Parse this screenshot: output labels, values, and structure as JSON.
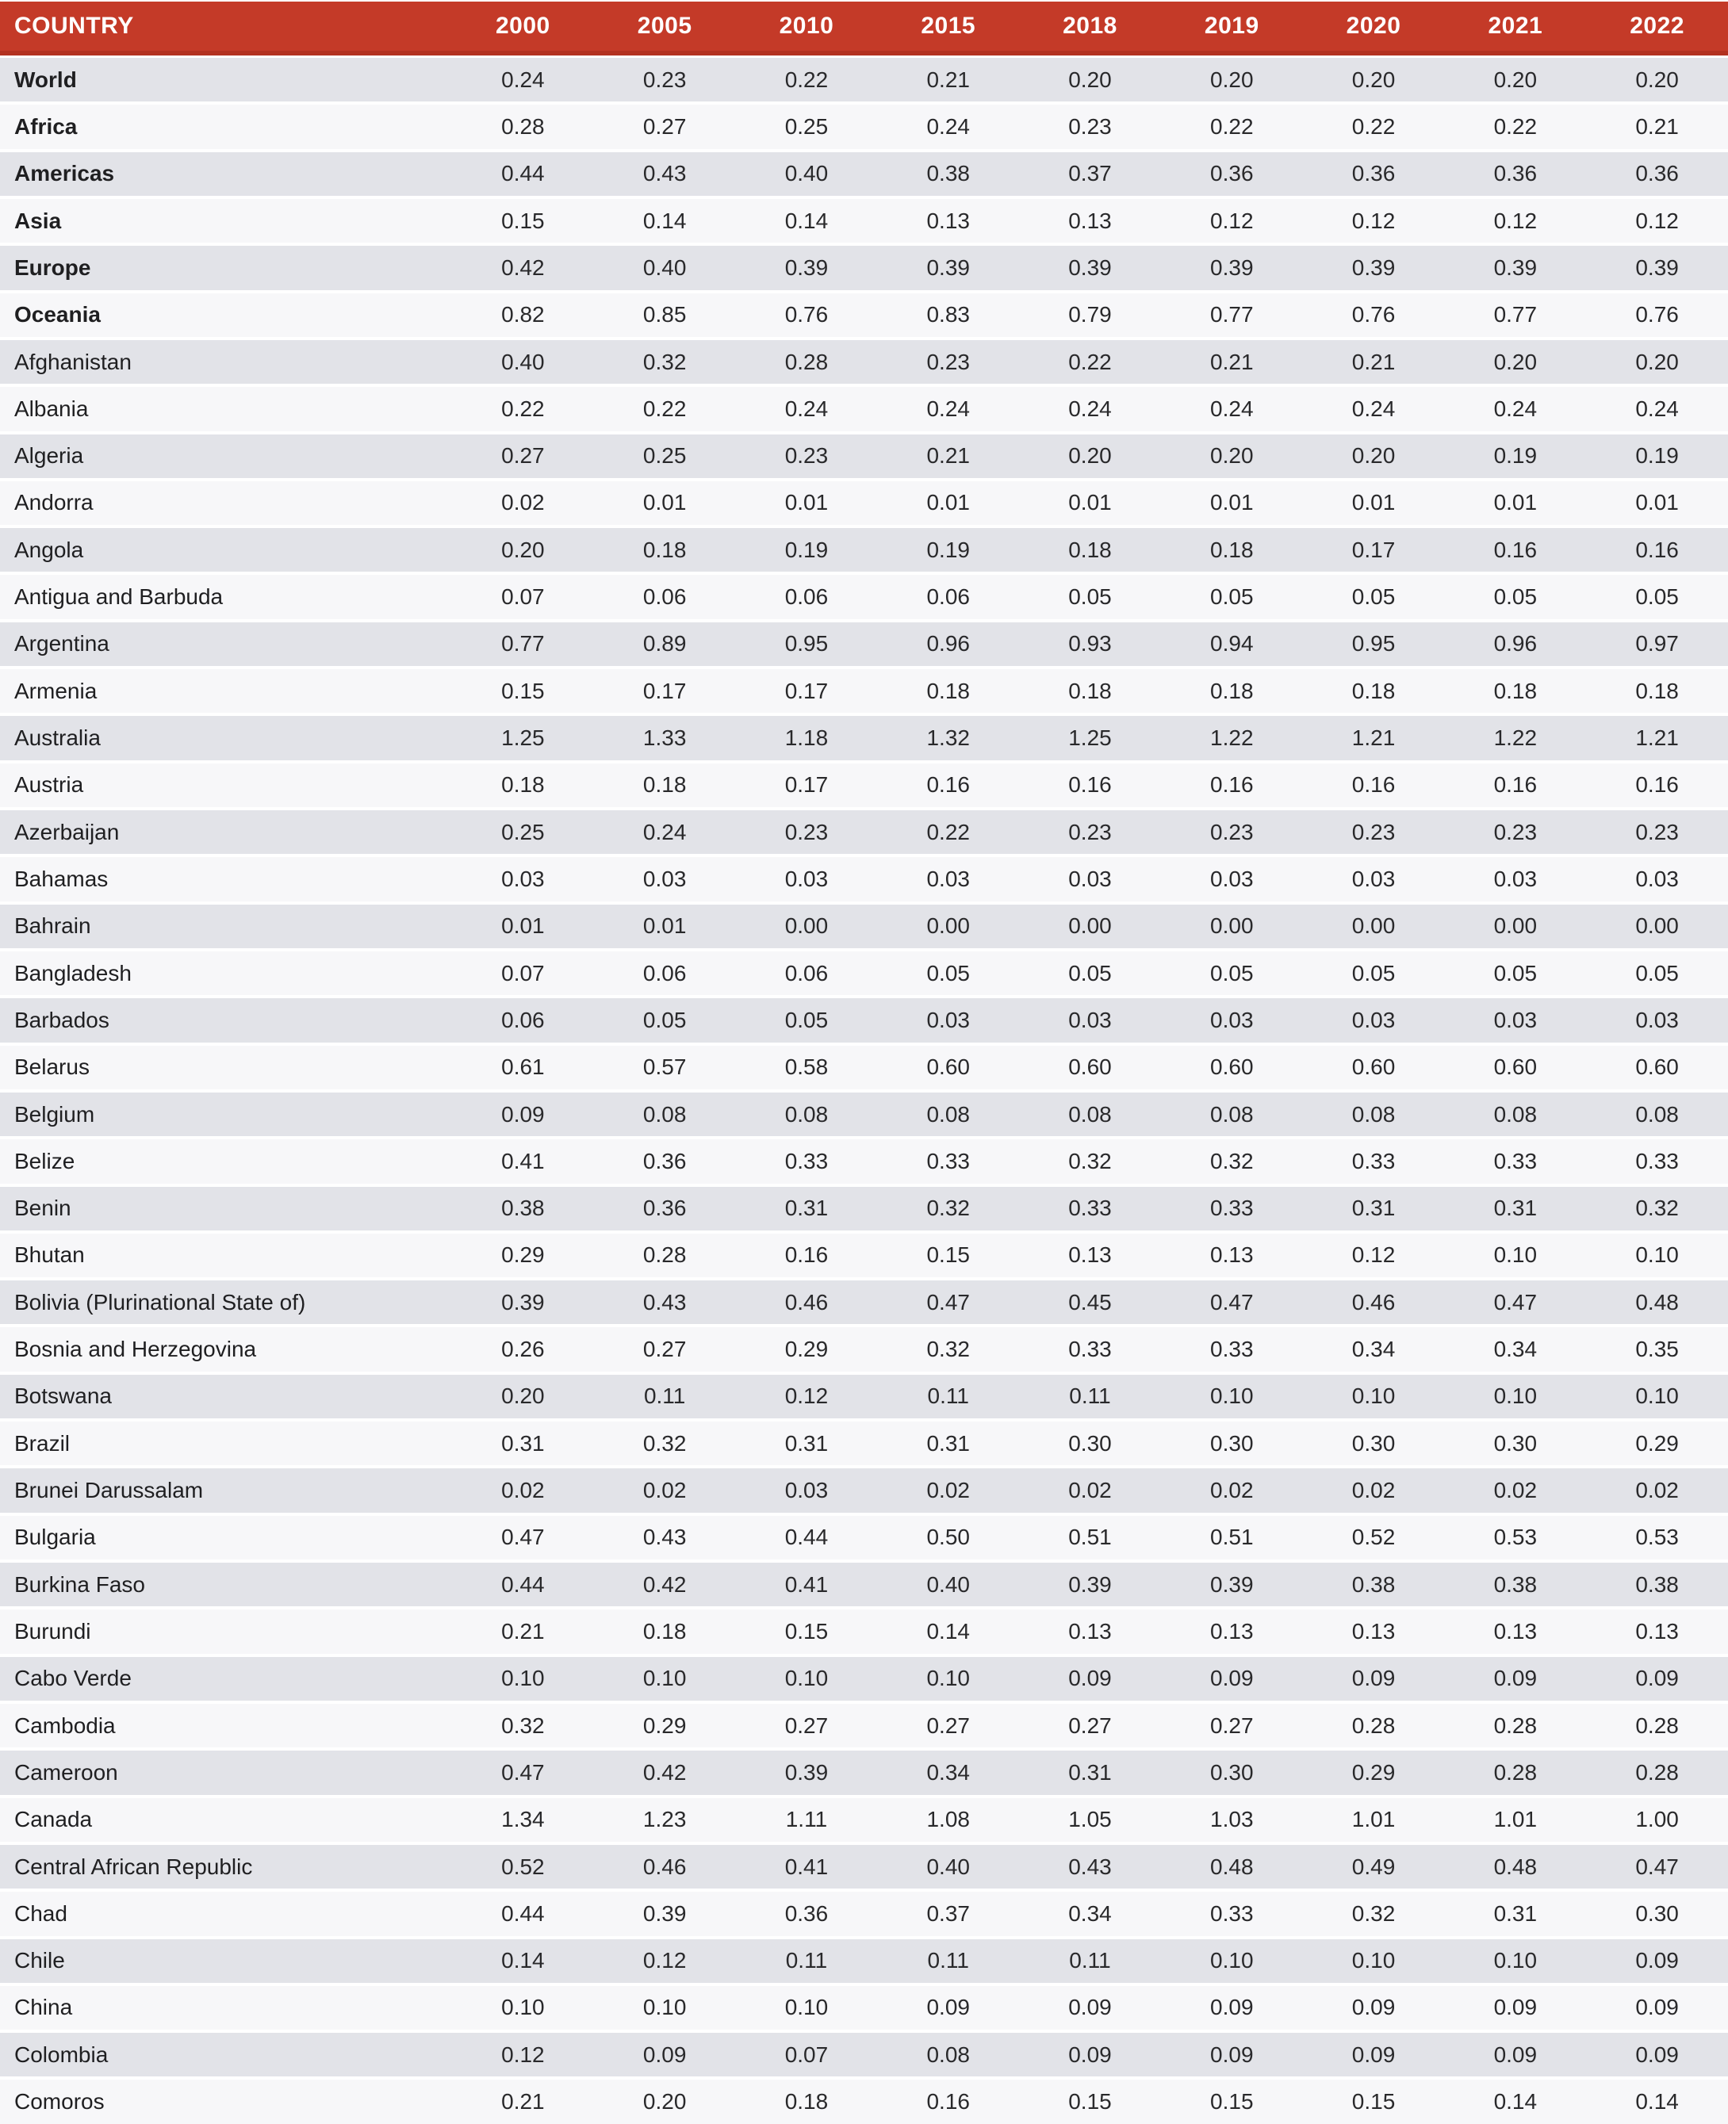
{
  "table": {
    "header": {
      "country_label": "COUNTRY",
      "years": [
        "2000",
        "2005",
        "2010",
        "2015",
        "2018",
        "2019",
        "2020",
        "2021",
        "2022"
      ]
    },
    "rows": [
      {
        "name": "World",
        "bold": true,
        "values": [
          "0.24",
          "0.23",
          "0.22",
          "0.21",
          "0.20",
          "0.20",
          "0.20",
          "0.20",
          "0.20"
        ]
      },
      {
        "name": "Africa",
        "bold": true,
        "values": [
          "0.28",
          "0.27",
          "0.25",
          "0.24",
          "0.23",
          "0.22",
          "0.22",
          "0.22",
          "0.21"
        ]
      },
      {
        "name": "Americas",
        "bold": true,
        "values": [
          "0.44",
          "0.43",
          "0.40",
          "0.38",
          "0.37",
          "0.36",
          "0.36",
          "0.36",
          "0.36"
        ]
      },
      {
        "name": "Asia",
        "bold": true,
        "values": [
          "0.15",
          "0.14",
          "0.14",
          "0.13",
          "0.13",
          "0.12",
          "0.12",
          "0.12",
          "0.12"
        ]
      },
      {
        "name": "Europe",
        "bold": true,
        "values": [
          "0.42",
          "0.40",
          "0.39",
          "0.39",
          "0.39",
          "0.39",
          "0.39",
          "0.39",
          "0.39"
        ]
      },
      {
        "name": "Oceania",
        "bold": true,
        "values": [
          "0.82",
          "0.85",
          "0.76",
          "0.83",
          "0.79",
          "0.77",
          "0.76",
          "0.77",
          "0.76"
        ]
      },
      {
        "name": "Afghanistan",
        "bold": false,
        "values": [
          "0.40",
          "0.32",
          "0.28",
          "0.23",
          "0.22",
          "0.21",
          "0.21",
          "0.20",
          "0.20"
        ]
      },
      {
        "name": "Albania",
        "bold": false,
        "values": [
          "0.22",
          "0.22",
          "0.24",
          "0.24",
          "0.24",
          "0.24",
          "0.24",
          "0.24",
          "0.24"
        ]
      },
      {
        "name": "Algeria",
        "bold": false,
        "values": [
          "0.27",
          "0.25",
          "0.23",
          "0.21",
          "0.20",
          "0.20",
          "0.20",
          "0.19",
          "0.19"
        ]
      },
      {
        "name": "Andorra",
        "bold": false,
        "values": [
          "0.02",
          "0.01",
          "0.01",
          "0.01",
          "0.01",
          "0.01",
          "0.01",
          "0.01",
          "0.01"
        ]
      },
      {
        "name": "Angola",
        "bold": false,
        "values": [
          "0.20",
          "0.18",
          "0.19",
          "0.19",
          "0.18",
          "0.18",
          "0.17",
          "0.16",
          "0.16"
        ]
      },
      {
        "name": "Antigua and Barbuda",
        "bold": false,
        "values": [
          "0.07",
          "0.06",
          "0.06",
          "0.06",
          "0.05",
          "0.05",
          "0.05",
          "0.05",
          "0.05"
        ]
      },
      {
        "name": "Argentina",
        "bold": false,
        "values": [
          "0.77",
          "0.89",
          "0.95",
          "0.96",
          "0.93",
          "0.94",
          "0.95",
          "0.96",
          "0.97"
        ]
      },
      {
        "name": "Armenia",
        "bold": false,
        "values": [
          "0.15",
          "0.17",
          "0.17",
          "0.18",
          "0.18",
          "0.18",
          "0.18",
          "0.18",
          "0.18"
        ]
      },
      {
        "name": "Australia",
        "bold": false,
        "values": [
          "1.25",
          "1.33",
          "1.18",
          "1.32",
          "1.25",
          "1.22",
          "1.21",
          "1.22",
          "1.21"
        ]
      },
      {
        "name": "Austria",
        "bold": false,
        "values": [
          "0.18",
          "0.18",
          "0.17",
          "0.16",
          "0.16",
          "0.16",
          "0.16",
          "0.16",
          "0.16"
        ]
      },
      {
        "name": "Azerbaijan",
        "bold": false,
        "values": [
          "0.25",
          "0.24",
          "0.23",
          "0.22",
          "0.23",
          "0.23",
          "0.23",
          "0.23",
          "0.23"
        ]
      },
      {
        "name": "Bahamas",
        "bold": false,
        "values": [
          "0.03",
          "0.03",
          "0.03",
          "0.03",
          "0.03",
          "0.03",
          "0.03",
          "0.03",
          "0.03"
        ]
      },
      {
        "name": "Bahrain",
        "bold": false,
        "values": [
          "0.01",
          "0.01",
          "0.00",
          "0.00",
          "0.00",
          "0.00",
          "0.00",
          "0.00",
          "0.00"
        ]
      },
      {
        "name": "Bangladesh",
        "bold": false,
        "values": [
          "0.07",
          "0.06",
          "0.06",
          "0.05",
          "0.05",
          "0.05",
          "0.05",
          "0.05",
          "0.05"
        ]
      },
      {
        "name": "Barbados",
        "bold": false,
        "values": [
          "0.06",
          "0.05",
          "0.05",
          "0.03",
          "0.03",
          "0.03",
          "0.03",
          "0.03",
          "0.03"
        ]
      },
      {
        "name": "Belarus",
        "bold": false,
        "values": [
          "0.61",
          "0.57",
          "0.58",
          "0.60",
          "0.60",
          "0.60",
          "0.60",
          "0.60",
          "0.60"
        ]
      },
      {
        "name": "Belgium",
        "bold": false,
        "values": [
          "0.09",
          "0.08",
          "0.08",
          "0.08",
          "0.08",
          "0.08",
          "0.08",
          "0.08",
          "0.08"
        ]
      },
      {
        "name": "Belize",
        "bold": false,
        "values": [
          "0.41",
          "0.36",
          "0.33",
          "0.33",
          "0.32",
          "0.32",
          "0.33",
          "0.33",
          "0.33"
        ]
      },
      {
        "name": "Benin",
        "bold": false,
        "values": [
          "0.38",
          "0.36",
          "0.31",
          "0.32",
          "0.33",
          "0.33",
          "0.31",
          "0.31",
          "0.32"
        ]
      },
      {
        "name": "Bhutan",
        "bold": false,
        "values": [
          "0.29",
          "0.28",
          "0.16",
          "0.15",
          "0.13",
          "0.13",
          "0.12",
          "0.10",
          "0.10"
        ]
      },
      {
        "name": "Bolivia (Plurinational State of)",
        "bold": false,
        "values": [
          "0.39",
          "0.43",
          "0.46",
          "0.47",
          "0.45",
          "0.47",
          "0.46",
          "0.47",
          "0.48"
        ]
      },
      {
        "name": "Bosnia and Herzegovina",
        "bold": false,
        "values": [
          "0.26",
          "0.27",
          "0.29",
          "0.32",
          "0.33",
          "0.33",
          "0.34",
          "0.34",
          "0.35"
        ]
      },
      {
        "name": "Botswana",
        "bold": false,
        "values": [
          "0.20",
          "0.11",
          "0.12",
          "0.11",
          "0.11",
          "0.10",
          "0.10",
          "0.10",
          "0.10"
        ]
      },
      {
        "name": "Brazil",
        "bold": false,
        "values": [
          "0.31",
          "0.32",
          "0.31",
          "0.31",
          "0.30",
          "0.30",
          "0.30",
          "0.30",
          "0.29"
        ]
      },
      {
        "name": "Brunei Darussalam",
        "bold": false,
        "values": [
          "0.02",
          "0.02",
          "0.03",
          "0.02",
          "0.02",
          "0.02",
          "0.02",
          "0.02",
          "0.02"
        ]
      },
      {
        "name": "Bulgaria",
        "bold": false,
        "values": [
          "0.47",
          "0.43",
          "0.44",
          "0.50",
          "0.51",
          "0.51",
          "0.52",
          "0.53",
          "0.53"
        ]
      },
      {
        "name": "Burkina Faso",
        "bold": false,
        "values": [
          "0.44",
          "0.42",
          "0.41",
          "0.40",
          "0.39",
          "0.39",
          "0.38",
          "0.38",
          "0.38"
        ]
      },
      {
        "name": "Burundi",
        "bold": false,
        "values": [
          "0.21",
          "0.18",
          "0.15",
          "0.14",
          "0.13",
          "0.13",
          "0.13",
          "0.13",
          "0.13"
        ]
      },
      {
        "name": "Cabo Verde",
        "bold": false,
        "values": [
          "0.10",
          "0.10",
          "0.10",
          "0.10",
          "0.09",
          "0.09",
          "0.09",
          "0.09",
          "0.09"
        ]
      },
      {
        "name": "Cambodia",
        "bold": false,
        "values": [
          "0.32",
          "0.29",
          "0.27",
          "0.27",
          "0.27",
          "0.27",
          "0.28",
          "0.28",
          "0.28"
        ]
      },
      {
        "name": "Cameroon",
        "bold": false,
        "values": [
          "0.47",
          "0.42",
          "0.39",
          "0.34",
          "0.31",
          "0.30",
          "0.29",
          "0.28",
          "0.28"
        ]
      },
      {
        "name": "Canada",
        "bold": false,
        "values": [
          "1.34",
          "1.23",
          "1.11",
          "1.08",
          "1.05",
          "1.03",
          "1.01",
          "1.01",
          "1.00"
        ]
      },
      {
        "name": "Central African Republic",
        "bold": false,
        "values": [
          "0.52",
          "0.46",
          "0.41",
          "0.40",
          "0.43",
          "0.48",
          "0.49",
          "0.48",
          "0.47"
        ]
      },
      {
        "name": "Chad",
        "bold": false,
        "values": [
          "0.44",
          "0.39",
          "0.36",
          "0.37",
          "0.34",
          "0.33",
          "0.32",
          "0.31",
          "0.30"
        ]
      },
      {
        "name": "Chile",
        "bold": false,
        "values": [
          "0.14",
          "0.12",
          "0.11",
          "0.11",
          "0.11",
          "0.10",
          "0.10",
          "0.10",
          "0.09"
        ]
      },
      {
        "name": "China",
        "bold": false,
        "values": [
          "0.10",
          "0.10",
          "0.10",
          "0.09",
          "0.09",
          "0.09",
          "0.09",
          "0.09",
          "0.09"
        ]
      },
      {
        "name": "Colombia",
        "bold": false,
        "values": [
          "0.12",
          "0.09",
          "0.07",
          "0.08",
          "0.09",
          "0.09",
          "0.09",
          "0.09",
          "0.09"
        ]
      },
      {
        "name": "Comoros",
        "bold": false,
        "values": [
          "0.21",
          "0.20",
          "0.18",
          "0.16",
          "0.15",
          "0.15",
          "0.15",
          "0.14",
          "0.14"
        ]
      }
    ]
  },
  "colors": {
    "header_background": "#C43A28",
    "header_border": "#B23120",
    "header_text": "#FFFFFF",
    "row_odd_background": "#E2E3E8",
    "row_even_background": "#F7F7F9",
    "body_text": "#29292B"
  }
}
